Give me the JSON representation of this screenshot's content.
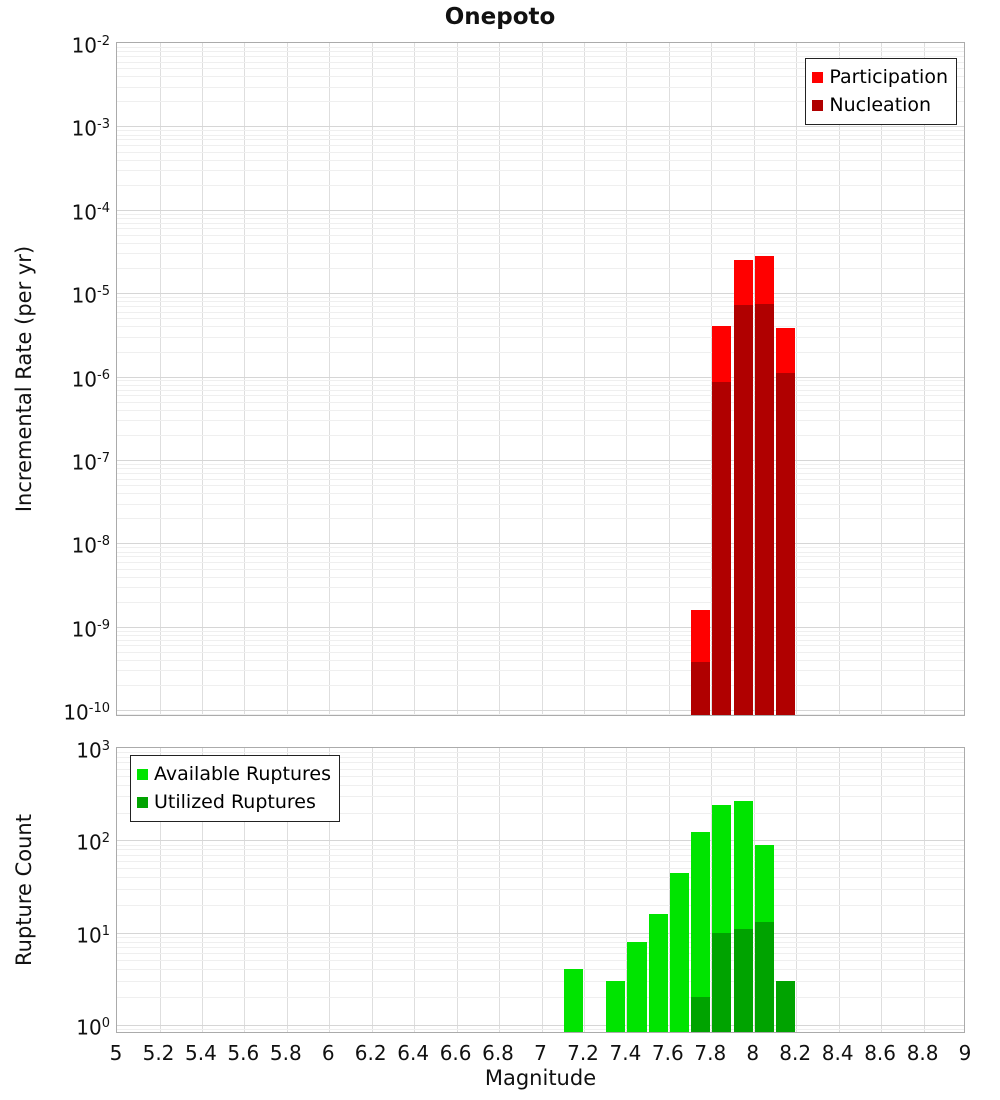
{
  "title": "Onepoto",
  "x_axis": {
    "label": "Magnitude",
    "min": 5,
    "max": 9,
    "ticks": [
      "5",
      "5.2",
      "5.4",
      "5.6",
      "5.8",
      "6",
      "6.2",
      "6.4",
      "6.6",
      "6.8",
      "7",
      "7.2",
      "7.4",
      "7.6",
      "7.8",
      "8",
      "8.2",
      "8.4",
      "8.6",
      "8.8",
      "9"
    ]
  },
  "chart_data": [
    {
      "type": "bar",
      "panel": "incremental-rate",
      "title": "Onepoto",
      "xlabel": "Magnitude",
      "ylabel": "Incremental Rate (per yr)",
      "yscale": "log",
      "ylim": [
        1e-10,
        0.01
      ],
      "xlim": [
        5,
        9
      ],
      "bin_width": 0.1,
      "grid": true,
      "yticks_exponents": [
        -2,
        -3,
        -4,
        -5,
        -6,
        -7,
        -8,
        -9,
        -10
      ],
      "legend_position": "top-right",
      "series": [
        {
          "name": "Participation",
          "color": "#ff0000",
          "bins": [
            7.75,
            7.85,
            7.95,
            8.05,
            8.15
          ],
          "values": [
            1.6e-09,
            4e-06,
            2.5e-05,
            2.8e-05,
            3.8e-06
          ]
        },
        {
          "name": "Nucleation",
          "color": "#b00000",
          "bins": [
            7.75,
            7.85,
            7.95,
            8.05,
            8.15
          ],
          "values": [
            3.8e-10,
            8.7e-07,
            7.3e-06,
            7.5e-06,
            1.1e-06
          ]
        }
      ]
    },
    {
      "type": "bar",
      "panel": "rupture-count",
      "xlabel": "Magnitude",
      "ylabel": "Rupture Count",
      "yscale": "log",
      "ylim": [
        1,
        1000
      ],
      "xlim": [
        5,
        9
      ],
      "bin_width": 0.1,
      "grid": true,
      "yticks_exponents": [
        3,
        2,
        1,
        0
      ],
      "legend_position": "top-left",
      "series": [
        {
          "name": "Available Ruptures",
          "color": "#00e400",
          "bins": [
            7.15,
            7.35,
            7.45,
            7.55,
            7.65,
            7.75,
            7.85,
            7.95,
            8.05,
            8.15
          ],
          "values": [
            4,
            3,
            8,
            16,
            44,
            122,
            240,
            266,
            88,
            3
          ]
        },
        {
          "name": "Utilized Ruptures",
          "color": "#00a300",
          "bins": [
            7.75,
            7.85,
            7.95,
            8.05,
            8.15
          ],
          "values": [
            2,
            10,
            11,
            13,
            3
          ]
        }
      ]
    }
  ]
}
